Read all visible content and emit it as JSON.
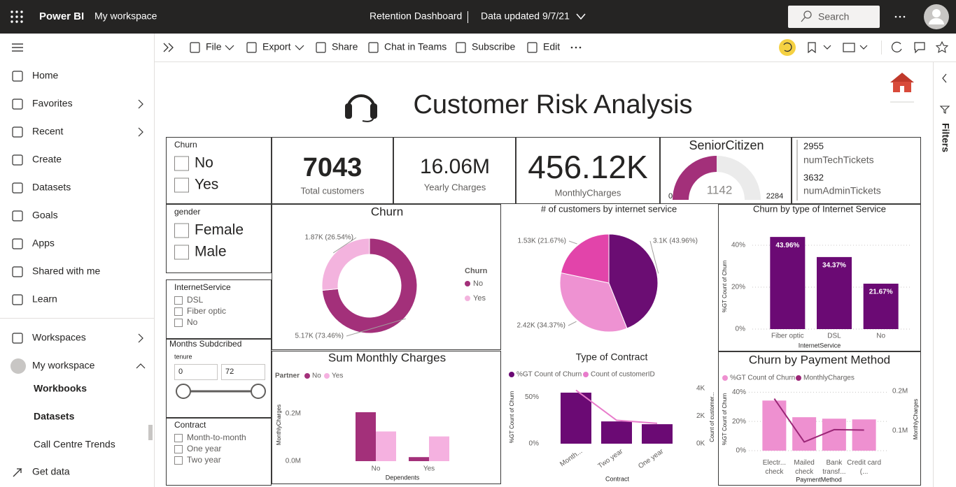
{
  "topbar": {
    "product": "Power BI",
    "workspace": "My workspace",
    "report": "Retention Dashboard",
    "updated": "Data updated 9/7/21",
    "search": "Search"
  },
  "nav": {
    "items": [
      "Home",
      "Favorites",
      "Recent",
      "Create",
      "Datasets",
      "Goals",
      "Apps",
      "Shared with me",
      "Learn",
      "Workspaces",
      "My workspace"
    ],
    "workspace_items": [
      "Workbooks",
      "Datasets",
      "Call Centre Trends"
    ],
    "footer": "Get data"
  },
  "toolbar": {
    "items": [
      "File",
      "Export",
      "Share",
      "Chat in Teams",
      "Subscribe",
      "Edit"
    ]
  },
  "filters_pane": {
    "title": "Filters"
  },
  "report": {
    "title": "Customer Risk Analysis",
    "slicers": {
      "churn": {
        "title": "Churn",
        "options": [
          "No",
          "Yes"
        ]
      },
      "gender": {
        "title": "gender",
        "options": [
          "Female",
          "Male"
        ]
      },
      "internet": {
        "title": "InternetService",
        "options": [
          "DSL",
          "Fiber optic",
          "No"
        ]
      },
      "tenure": {
        "title": "Months Subdcribed",
        "field": "tenure",
        "min": 0,
        "max": 72
      },
      "contract": {
        "title": "Contract",
        "options": [
          "Month-to-month",
          "One year",
          "Two year"
        ]
      }
    },
    "cards": [
      {
        "value": "7043",
        "label": "Total customers"
      },
      {
        "value": "16.06M",
        "label": "Yearly Charges"
      },
      {
        "value": "456.12K",
        "label": "MonthlyCharges"
      }
    ],
    "gauge": {
      "title": "SeniorCitizen",
      "value": 1142,
      "min": 0,
      "max": 2284
    },
    "multi_card": [
      {
        "value": "2955",
        "label": "numTechTickets"
      },
      {
        "value": "3632",
        "label": "numAdminTickets"
      }
    ],
    "charts": [
      {
        "type": "donut",
        "title": "Churn",
        "legend_title": "Churn",
        "categories": [
          "No",
          "Yes"
        ],
        "values": [
          5174,
          1869
        ],
        "value_labels": [
          "5.17K (73.46%)",
          "1.87K (26.54%)"
        ],
        "colors": [
          "#a3307a",
          "#f3b3de"
        ]
      },
      {
        "type": "pie",
        "title": "# of customers by internet service",
        "values": [
          3096,
          2421,
          1526
        ],
        "value_labels": [
          "3.1K (43.96%)",
          "2.42K (34.37%)",
          "1.53K (21.67%)"
        ],
        "colors": [
          "#6b0d73",
          "#ee92d2",
          "#e244aa"
        ]
      },
      {
        "type": "bar",
        "title": "Churn by type of Internet Service",
        "categories": [
          "Fiber optic",
          "DSL",
          "No"
        ],
        "values": [
          43.96,
          34.37,
          21.67
        ],
        "value_labels": [
          "43.96%",
          "34.37%",
          "21.67%"
        ],
        "color": "#6b0a74",
        "ylim": [
          0,
          47
        ],
        "yticks": [
          {
            "value": 0,
            "label": "0%"
          },
          {
            "value": 20,
            "label": "20%"
          },
          {
            "value": 40,
            "label": "40%"
          }
        ],
        "y_label": "%GT Count of Churn",
        "x_label": "InternetService",
        "grid": true
      },
      {
        "type": "grouped_bar",
        "title": "Sum Monthly Charges",
        "legend_title": "Partner",
        "categories": [
          "No",
          "Yes"
        ],
        "series": [
          {
            "name": "No",
            "color": "#a3307a",
            "values": [
              206000,
              17000
            ]
          },
          {
            "name": "Yes",
            "color": "#f5b1e0",
            "values": [
              125000,
              104000
            ]
          }
        ],
        "ylim": [
          0,
          250000
        ],
        "yticks": [
          {
            "value": 0,
            "label": "0.0M"
          },
          {
            "value": 200000,
            "label": "0.2M"
          }
        ],
        "y_label": "MonthlyCharges",
        "x_label": "Dependents",
        "grid": false
      },
      {
        "type": "combo",
        "title": "Type of Contract",
        "categories": [
          "Month...",
          "Two year",
          "One year"
        ],
        "series": [
          {
            "name": "%GT Count of Churn",
            "color": "#6b0a74",
            "values": [
              55,
              24,
              21
            ]
          },
          {
            "name": "Count of customerID",
            "color": "#e87ccb",
            "values": [
              3875,
              1695,
              1473
            ],
            "axis": "y2"
          }
        ],
        "ylim": [
          0,
          64
        ],
        "yticks": [
          {
            "value": 0,
            "label": "0%"
          },
          {
            "value": 50,
            "label": "50%"
          }
        ],
        "y2lim": [
          0,
          4300
        ],
        "y2ticks": [
          {
            "value": 0,
            "label": "0K"
          },
          {
            "value": 2000,
            "label": "2K"
          },
          {
            "value": 4000,
            "label": "4K"
          }
        ],
        "y_label": "%GT Count of Churn",
        "y2_label": "Count of customer...",
        "x_label": "Contract",
        "grid": false
      },
      {
        "type": "combo",
        "title": "Churn by Payment Method",
        "categories": [
          "Electr... check",
          "Mailed check",
          "Bank transf...",
          "Credit card (..."
        ],
        "series": [
          {
            "name": "%GT Count of Churn",
            "color": "#ee90d0",
            "values": [
              34.3,
              22.9,
              21.9,
              21.4
            ]
          },
          {
            "name": "MonthlyCharges",
            "color": "#9b2677",
            "values": [
              181000,
              72000,
              103000,
              102000
            ],
            "axis": "y2"
          }
        ],
        "ylim": [
          0,
          44
        ],
        "yticks": [
          {
            "value": 0,
            "label": "0%"
          },
          {
            "value": 20,
            "label": "20%"
          },
          {
            "value": 40,
            "label": "40%"
          }
        ],
        "y2lim": [
          50000,
          212000
        ],
        "y2ticks": [
          {
            "value": 100000,
            "label": "0.1M"
          },
          {
            "value": 200000,
            "label": "0.2M"
          }
        ],
        "y_label": "%GT Count of Churn",
        "y2_label": "MonthlyCharges",
        "x_label": "PaymentMethod",
        "grid": true
      }
    ]
  }
}
